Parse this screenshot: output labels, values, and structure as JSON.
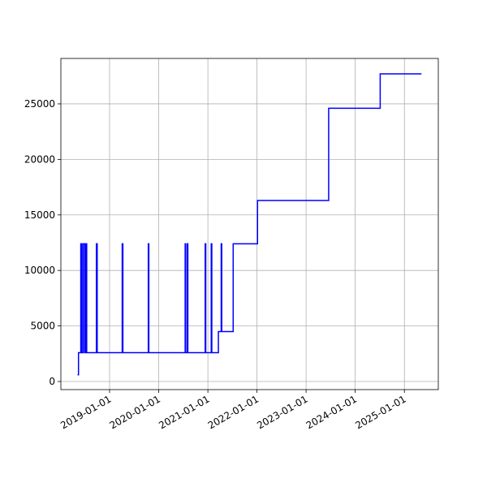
{
  "chart_data": {
    "type": "line",
    "step": "post",
    "grid": true,
    "series": [
      {
        "color": "#0000ff",
        "x": [
          "2018-05-08",
          "2018-05-15",
          "2018-06-01",
          "2018-06-10",
          "2018-06-20",
          "2018-07-01",
          "2018-07-10",
          "2018-07-15",
          "2018-09-25",
          "2018-10-01",
          "2019-04-05",
          "2019-04-10",
          "2019-10-16",
          "2019-10-20",
          "2020-07-16",
          "2020-07-20",
          "2020-08-01",
          "2020-08-05",
          "2020-12-12",
          "2020-12-16",
          "2021-01-26",
          "2021-01-30",
          "2021-03-20",
          "2021-04-10",
          "2021-04-14",
          "2021-07-08",
          "2022-01-05",
          "2023-06-18",
          "2024-07-05",
          "2025-05-08"
        ],
        "values": [
          600,
          2600,
          12400,
          2600,
          12400,
          2600,
          12400,
          2600,
          12400,
          2600,
          12400,
          2600,
          12400,
          2600,
          12400,
          2600,
          12400,
          2600,
          12400,
          2600,
          12400,
          2600,
          4500,
          12400,
          4500,
          12400,
          16300,
          24600,
          27700,
          27700
        ]
      }
    ],
    "xlim": [
      "2018-01-04",
      "2025-09-10"
    ],
    "xticks": [
      "2019-01-01",
      "2020-01-01",
      "2021-01-01",
      "2022-01-01",
      "2023-01-01",
      "2024-01-01",
      "2025-01-01"
    ],
    "ylim": [
      -730,
      29090
    ],
    "yticks": [
      0,
      5000,
      10000,
      15000,
      20000,
      25000
    ]
  }
}
